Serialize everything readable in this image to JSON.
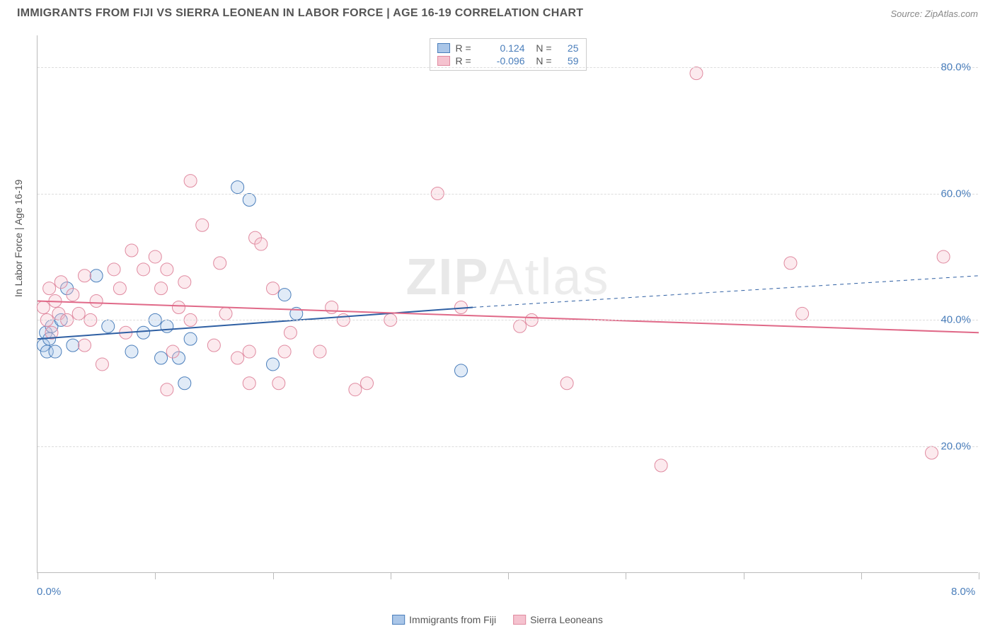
{
  "header": {
    "title": "IMMIGRANTS FROM FIJI VS SIERRA LEONEAN IN LABOR FORCE | AGE 16-19 CORRELATION CHART",
    "source": "Source: ZipAtlas.com"
  },
  "chart": {
    "type": "scatter",
    "ylabel": "In Labor Force | Age 16-19",
    "watermark_a": "ZIP",
    "watermark_b": "Atlas",
    "background_color": "#ffffff",
    "grid_color": "#dddddd",
    "axis_color": "#bbbbbb",
    "xlim": [
      0,
      8
    ],
    "ylim": [
      0,
      85
    ],
    "xtick_labels": [
      "0.0%",
      "8.0%"
    ],
    "ytick_values": [
      20,
      40,
      60,
      80
    ],
    "ytick_labels": [
      "20.0%",
      "40.0%",
      "60.0%",
      "80.0%"
    ],
    "xtick_marks": [
      0,
      1,
      2,
      3,
      4,
      5,
      6,
      7,
      8
    ],
    "marker_radius": 9,
    "marker_stroke_width": 1,
    "marker_fill_opacity": 0.35,
    "legend_top": {
      "rows": [
        {
          "swatch_fill": "#aac6e8",
          "swatch_stroke": "#4a7ebb",
          "r_label": "R =",
          "r_value": "0.124",
          "n_label": "N =",
          "n_value": "25"
        },
        {
          "swatch_fill": "#f5c2cf",
          "swatch_stroke": "#e08aa0",
          "r_label": "R =",
          "r_value": "-0.096",
          "n_label": "N =",
          "n_value": "59"
        }
      ]
    },
    "legend_bottom": [
      {
        "swatch_fill": "#aac6e8",
        "swatch_stroke": "#4a7ebb",
        "label": "Immigrants from Fiji"
      },
      {
        "swatch_fill": "#f5c2cf",
        "swatch_stroke": "#e08aa0",
        "label": "Sierra Leoneans"
      }
    ],
    "series": [
      {
        "name": "Immigrants from Fiji",
        "color_fill": "#aac6e8",
        "color_stroke": "#4a7ebb",
        "trend": {
          "x1": 0,
          "y1": 37,
          "x2": 3.7,
          "y2": 42,
          "dash_x2": 8,
          "dash_y2": 47,
          "stroke": "#2e5fa3",
          "width": 2
        },
        "points": [
          {
            "x": 0.05,
            "y": 36
          },
          {
            "x": 0.07,
            "y": 38
          },
          {
            "x": 0.08,
            "y": 35
          },
          {
            "x": 0.1,
            "y": 37
          },
          {
            "x": 0.12,
            "y": 39
          },
          {
            "x": 0.15,
            "y": 35
          },
          {
            "x": 0.2,
            "y": 40
          },
          {
            "x": 0.25,
            "y": 45
          },
          {
            "x": 0.3,
            "y": 36
          },
          {
            "x": 0.5,
            "y": 47
          },
          {
            "x": 0.6,
            "y": 39
          },
          {
            "x": 0.8,
            "y": 35
          },
          {
            "x": 0.9,
            "y": 38
          },
          {
            "x": 1.0,
            "y": 40
          },
          {
            "x": 1.05,
            "y": 34
          },
          {
            "x": 1.1,
            "y": 39
          },
          {
            "x": 1.2,
            "y": 34
          },
          {
            "x": 1.25,
            "y": 30
          },
          {
            "x": 1.3,
            "y": 37
          },
          {
            "x": 1.7,
            "y": 61
          },
          {
            "x": 1.8,
            "y": 59
          },
          {
            "x": 2.0,
            "y": 33
          },
          {
            "x": 2.1,
            "y": 44
          },
          {
            "x": 2.2,
            "y": 41
          },
          {
            "x": 3.6,
            "y": 32
          }
        ]
      },
      {
        "name": "Sierra Leoneans",
        "color_fill": "#f5c2cf",
        "color_stroke": "#e08aa0",
        "trend": {
          "x1": 0,
          "y1": 43,
          "x2": 8,
          "y2": 38,
          "stroke": "#e06988",
          "width": 2
        },
        "points": [
          {
            "x": 0.05,
            "y": 42
          },
          {
            "x": 0.08,
            "y": 40
          },
          {
            "x": 0.1,
            "y": 45
          },
          {
            "x": 0.12,
            "y": 38
          },
          {
            "x": 0.15,
            "y": 43
          },
          {
            "x": 0.18,
            "y": 41
          },
          {
            "x": 0.2,
            "y": 46
          },
          {
            "x": 0.25,
            "y": 40
          },
          {
            "x": 0.3,
            "y": 44
          },
          {
            "x": 0.35,
            "y": 41
          },
          {
            "x": 0.4,
            "y": 47
          },
          {
            "x": 0.45,
            "y": 40
          },
          {
            "x": 0.4,
            "y": 36
          },
          {
            "x": 0.5,
            "y": 43
          },
          {
            "x": 0.65,
            "y": 48
          },
          {
            "x": 0.7,
            "y": 45
          },
          {
            "x": 0.75,
            "y": 38
          },
          {
            "x": 0.55,
            "y": 33
          },
          {
            "x": 0.9,
            "y": 48
          },
          {
            "x": 0.8,
            "y": 51
          },
          {
            "x": 1.0,
            "y": 50
          },
          {
            "x": 1.05,
            "y": 45
          },
          {
            "x": 1.1,
            "y": 48
          },
          {
            "x": 1.1,
            "y": 29
          },
          {
            "x": 1.15,
            "y": 35
          },
          {
            "x": 1.2,
            "y": 42
          },
          {
            "x": 1.25,
            "y": 46
          },
          {
            "x": 1.3,
            "y": 40
          },
          {
            "x": 1.3,
            "y": 62
          },
          {
            "x": 1.4,
            "y": 55
          },
          {
            "x": 1.5,
            "y": 36
          },
          {
            "x": 1.6,
            "y": 41
          },
          {
            "x": 1.55,
            "y": 49
          },
          {
            "x": 1.7,
            "y": 34
          },
          {
            "x": 1.8,
            "y": 35
          },
          {
            "x": 1.8,
            "y": 30
          },
          {
            "x": 1.85,
            "y": 53
          },
          {
            "x": 1.9,
            "y": 52
          },
          {
            "x": 2.0,
            "y": 45
          },
          {
            "x": 2.05,
            "y": 30
          },
          {
            "x": 2.1,
            "y": 35
          },
          {
            "x": 2.15,
            "y": 38
          },
          {
            "x": 2.4,
            "y": 35
          },
          {
            "x": 2.5,
            "y": 42
          },
          {
            "x": 2.6,
            "y": 40
          },
          {
            "x": 2.7,
            "y": 29
          },
          {
            "x": 2.8,
            "y": 30
          },
          {
            "x": 3.0,
            "y": 40
          },
          {
            "x": 3.4,
            "y": 60
          },
          {
            "x": 3.6,
            "y": 42
          },
          {
            "x": 4.1,
            "y": 39
          },
          {
            "x": 4.2,
            "y": 40
          },
          {
            "x": 4.5,
            "y": 30
          },
          {
            "x": 5.3,
            "y": 17
          },
          {
            "x": 5.6,
            "y": 79
          },
          {
            "x": 6.4,
            "y": 49
          },
          {
            "x": 6.5,
            "y": 41
          },
          {
            "x": 7.6,
            "y": 19
          },
          {
            "x": 7.7,
            "y": 50
          }
        ]
      }
    ]
  }
}
